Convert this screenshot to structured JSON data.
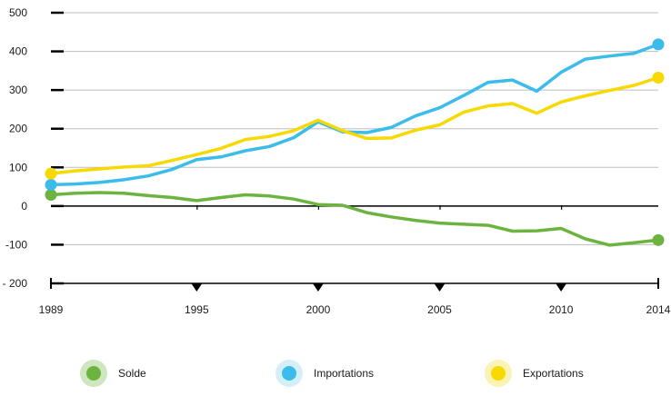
{
  "chart_data": {
    "type": "line",
    "title": "",
    "xlabel": "",
    "ylabel": "",
    "ylim": [
      -200,
      500
    ],
    "yticks": [
      500,
      400,
      300,
      200,
      100,
      0,
      -100,
      -200
    ],
    "ytick_labels": [
      "500",
      "400",
      "300",
      "200",
      "100",
      "0",
      "-100",
      "- 200"
    ],
    "xlim": [
      1989,
      2014
    ],
    "xticks": [
      1989,
      1995,
      2000,
      2005,
      2010,
      2014
    ],
    "grid": true,
    "legend_position": "bottom",
    "x": [
      1989,
      1990,
      1991,
      1992,
      1993,
      1994,
      1995,
      1996,
      1997,
      1998,
      1999,
      2000,
      2001,
      2002,
      2003,
      2004,
      2005,
      2006,
      2007,
      2008,
      2009,
      2010,
      2011,
      2012,
      2013,
      2014
    ],
    "series": [
      {
        "name": "Solde",
        "color": "#6cb33f",
        "values": [
          29,
          33,
          35,
          33,
          27,
          22,
          14,
          22,
          29,
          26,
          18,
          4,
          2,
          -17,
          -28,
          -37,
          -44,
          -47,
          -50,
          -65,
          -64,
          -58,
          -85,
          -101,
          -95,
          -88
        ]
      },
      {
        "name": "Importations",
        "color": "#3bbcea",
        "values": [
          55,
          57,
          61,
          68,
          78,
          95,
          120,
          127,
          143,
          154,
          177,
          218,
          192,
          190,
          203,
          233,
          254,
          286,
          320,
          326,
          297,
          346,
          380,
          388,
          395,
          418
        ]
      },
      {
        "name": "Exportations",
        "color": "#f7d900",
        "values": [
          84,
          91,
          96,
          101,
          104,
          118,
          133,
          149,
          172,
          180,
          195,
          222,
          195,
          175,
          176,
          196,
          210,
          243,
          259,
          265,
          240,
          269,
          285,
          299,
          312,
          332
        ]
      }
    ]
  },
  "legend": [
    {
      "label": "Solde",
      "color": "#6cb33f",
      "halo": "#cfe6c1"
    },
    {
      "label": "Importations",
      "color": "#3bbcea",
      "halo": "#d5eff9"
    },
    {
      "label": "Exportations",
      "color": "#f7d900",
      "halo": "#fbf2b5"
    }
  ]
}
